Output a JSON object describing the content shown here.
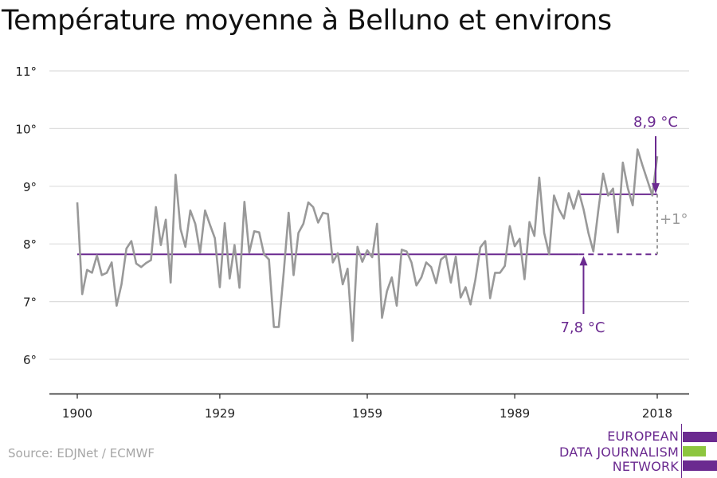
{
  "title": "Température moyenne à Belluno et environs",
  "source": "Source: EDJNet / ECMWF",
  "logo": {
    "lines": [
      "EUROPEAN",
      "DATA JOURNALISM",
      "NETWORK"
    ]
  },
  "colors": {
    "series": "#999999",
    "accent": "#6b2a90",
    "grid": "#dddddd",
    "logo_green": "#8dc63f",
    "axis": "#222222"
  },
  "chart_data": {
    "type": "line",
    "title": "Température moyenne à Belluno et environs",
    "xlim": [
      1900,
      2018
    ],
    "ylim": [
      5.4,
      11
    ],
    "y_ticks": [
      6,
      7,
      8,
      9,
      10,
      11
    ],
    "y_tick_labels": [
      "6°",
      "7°",
      "8°",
      "9°",
      "10°",
      "11°"
    ],
    "x_ticks": [
      1900,
      1929,
      1959,
      1989,
      2018
    ],
    "x_tick_labels": [
      "1900",
      "1929",
      "1959",
      "1989",
      "2018"
    ],
    "grid": true,
    "series": [
      {
        "x_start": 1900,
        "values": [
          8.72,
          7.13,
          7.55,
          7.5,
          7.8,
          7.46,
          7.5,
          7.68,
          6.93,
          7.3,
          7.92,
          8.05,
          7.66,
          7.6,
          7.67,
          7.72,
          8.64,
          7.98,
          8.42,
          7.33,
          9.2,
          8.26,
          7.95,
          8.58,
          8.35,
          7.85,
          8.58,
          8.33,
          8.1,
          7.25,
          8.36,
          7.4,
          7.98,
          7.24,
          8.73,
          7.85,
          8.22,
          8.2,
          7.82,
          7.73,
          6.56,
          6.56,
          7.5,
          8.54,
          7.46,
          8.19,
          8.35,
          8.72,
          8.64,
          8.37,
          8.54,
          8.52,
          7.68,
          7.84,
          7.3,
          7.57,
          6.32,
          7.95,
          7.69,
          7.89,
          7.77,
          8.35,
          6.72,
          7.18,
          7.42,
          6.93,
          7.9,
          7.87,
          7.68,
          7.28,
          7.42,
          7.68,
          7.6,
          7.32,
          7.73,
          7.8,
          7.33,
          7.78,
          7.07,
          7.25,
          6.95,
          7.38,
          7.94,
          8.05,
          7.06,
          7.5,
          7.5,
          7.62,
          8.31,
          7.96,
          8.09,
          7.39,
          8.38,
          8.14,
          9.15,
          8.19,
          7.82,
          8.84,
          8.6,
          8.44,
          8.88,
          8.61,
          8.92,
          8.6,
          8.19,
          7.87,
          8.58,
          9.22,
          8.84,
          8.96,
          8.2,
          9.41,
          8.97,
          8.67,
          9.64,
          9.36,
          9.1,
          8.84,
          9.52
        ]
      }
    ],
    "reference_lines": [
      {
        "label": "7,8 °C",
        "value": 7.82,
        "from": 1900,
        "to": 2002
      },
      {
        "label": "8,9 °C",
        "value": 8.86,
        "from": 2002,
        "to": 2018
      }
    ],
    "annotations": [
      {
        "text": "8,9 °C",
        "year": 2018
      },
      {
        "text": "7,8 °C",
        "year": 2003
      },
      {
        "text": "+1°",
        "year": 2018
      }
    ]
  }
}
